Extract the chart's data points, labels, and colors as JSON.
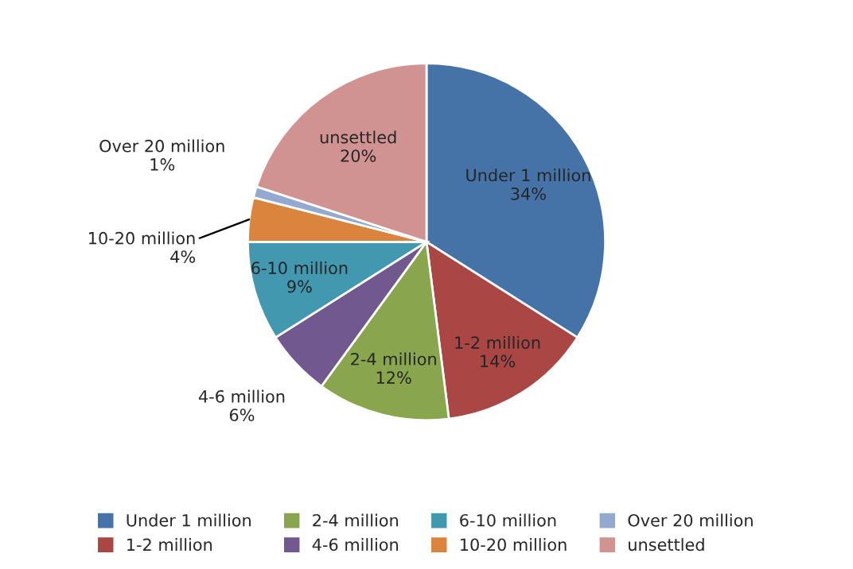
{
  "chart_data": {
    "type": "pie",
    "categories": [
      "Under 1 million",
      "1-2 million",
      "2-4 million",
      "4-6 million",
      "6-10 million",
      "10-20 million",
      "Over 20 million",
      "unsettled"
    ],
    "values": [
      34,
      14,
      12,
      6,
      9,
      4,
      1,
      20
    ],
    "value_labels": [
      "34%",
      "14%",
      "12%",
      "6%",
      "9%",
      "4%",
      "1%",
      "20%"
    ],
    "colors": [
      "#4572a7",
      "#aa4643",
      "#89a54e",
      "#71588f",
      "#4198af",
      "#db843d",
      "#93a9cf",
      "#d19392"
    ],
    "legend": "bottom"
  }
}
